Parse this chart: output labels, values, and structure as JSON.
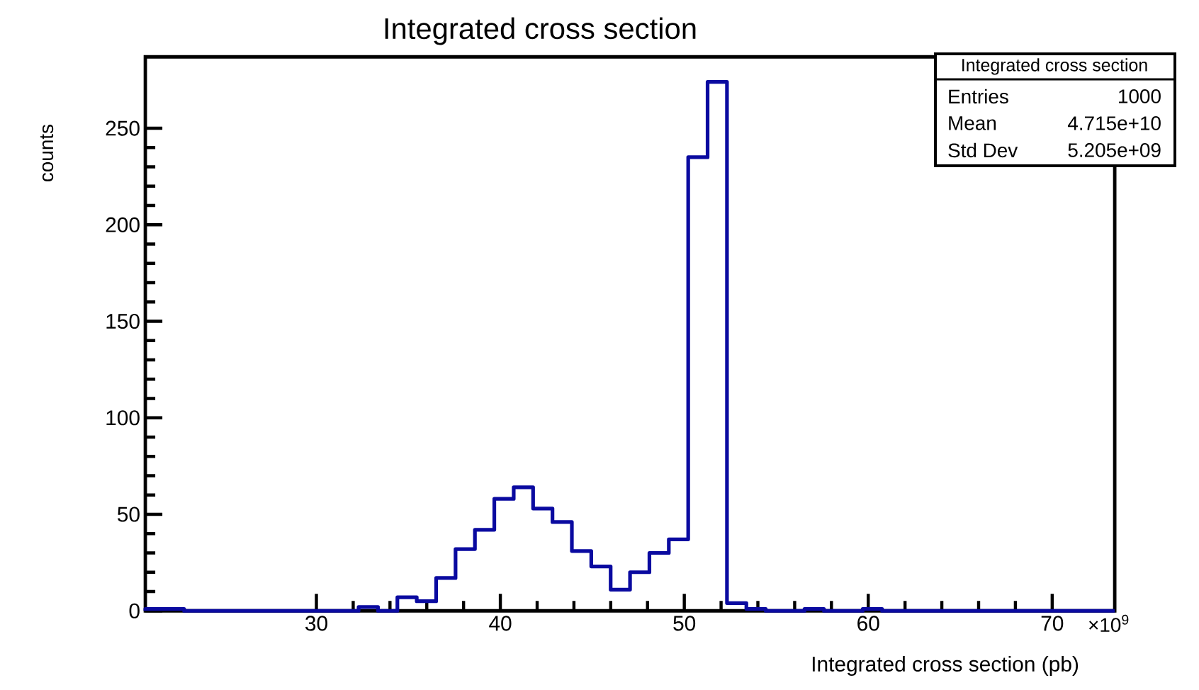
{
  "chart_data": {
    "type": "histogram",
    "title": "Integrated cross section",
    "xlabel": "Integrated cross section (pb)",
    "ylabel": "counts",
    "bins": [
      20.7,
      21.754,
      22.808,
      23.862,
      24.916,
      25.97,
      27.024,
      28.078,
      29.132,
      30.186,
      31.24,
      32.294,
      33.348,
      34.402,
      35.456,
      36.51,
      37.564,
      38.618,
      39.672,
      40.726,
      41.78,
      42.834,
      43.888,
      44.942,
      45.996,
      47.05,
      48.104,
      49.158,
      50.212,
      51.266,
      52.32,
      53.374,
      54.428,
      55.482,
      56.536,
      57.59,
      58.644,
      59.698,
      60.752,
      61.806,
      62.86,
      63.914,
      64.968,
      66.022,
      67.076,
      68.13,
      69.184,
      70.238,
      71.292,
      72.346,
      73.4
    ],
    "values": [
      1,
      1,
      0,
      0,
      0,
      0,
      0,
      0,
      0,
      0,
      0,
      2,
      0,
      7,
      5,
      17,
      32,
      42,
      58,
      64,
      53,
      46,
      31,
      23,
      11,
      20,
      30,
      37,
      235,
      274,
      4,
      1,
      0,
      0,
      1,
      0,
      0,
      1,
      0,
      0,
      0,
      0,
      0,
      0,
      0,
      0,
      0,
      0,
      0,
      0
    ],
    "color": "#0a0aa0",
    "xlim": [
      20.7,
      73.4
    ],
    "ylim": [
      0,
      287
    ],
    "xticks": [
      30,
      40,
      50,
      60,
      70
    ],
    "yticks": [
      0,
      50,
      100,
      150,
      200,
      250
    ],
    "annotations": [
      "Integrated cross section",
      "Entries",
      "1000",
      "Mean",
      "4.715e+10",
      "Std Dev",
      "5.205e+09",
      "×10$^{9}$"
    ]
  }
}
